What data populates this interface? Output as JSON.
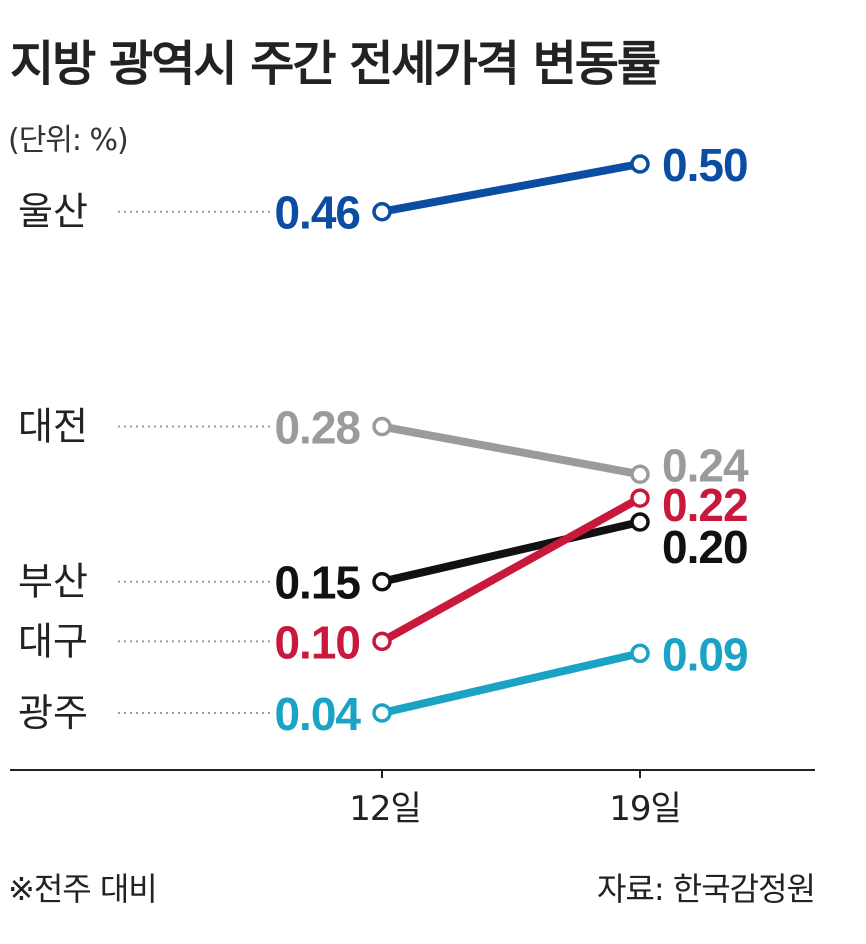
{
  "title": "지방 광역시 주간 전세가격 변동률",
  "unit": "(단위: %)",
  "note": "※전주 대비",
  "source": "자료: 한국감정원",
  "chart_data": {
    "type": "line",
    "x": [
      "12일",
      "19일"
    ],
    "ylabel": "",
    "xlabel": "",
    "series": [
      {
        "name": "울산",
        "values": [
          0.46,
          0.5
        ],
        "color": "#0b4da2"
      },
      {
        "name": "대전",
        "values": [
          0.28,
          0.24
        ],
        "color": "#9b9b9b"
      },
      {
        "name": "부산",
        "values": [
          0.15,
          0.2
        ],
        "color": "#111111"
      },
      {
        "name": "대구",
        "values": [
          0.1,
          0.22
        ],
        "color": "#c8193c"
      },
      {
        "name": "광주",
        "values": [
          0.04,
          0.09
        ],
        "color": "#1aa3c4"
      }
    ],
    "start_labels": [
      "0.46",
      "0.28",
      "0.15",
      "0.10",
      "0.04"
    ],
    "end_labels": [
      "0.50",
      "0.24",
      "0.20",
      "0.22",
      "0.09"
    ],
    "grid": false,
    "legend": "none"
  }
}
